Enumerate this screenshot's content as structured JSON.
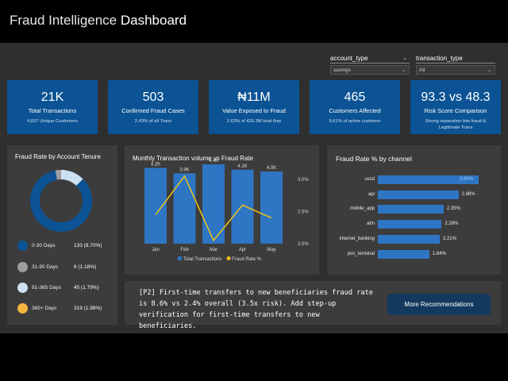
{
  "header": {
    "title_light": "Fraud Intelligence",
    "title_bold": "Dashboard"
  },
  "filters": [
    {
      "label": "account_type",
      "value": "savings"
    },
    {
      "label": "transaction_type",
      "value": "All"
    }
  ],
  "kpis": [
    {
      "value": "21K",
      "label": "Total Transactions",
      "sub": "4,837 Unique Customers"
    },
    {
      "value": "503",
      "label": "Confirmed Fraud Cases",
      "sub": "2.43% of all Trans"
    },
    {
      "value": "₦11M",
      "label": "Value Exposed to Fraud",
      "sub": "2.63% of 426.3M total flow"
    },
    {
      "value": "465",
      "label": "Customers Affected",
      "sub": "9.61% of active customer"
    },
    {
      "value": "93.3 vs 48.3",
      "label": "Risk Score Comparison",
      "sub": "Strong separation btw fraud & Legitimate Trans"
    }
  ],
  "tenure": {
    "title": "Fraud Rate by Account Tenure",
    "items": [
      {
        "label": "0-30 Days",
        "value": "133 (8.70%)",
        "color": "#0b5394"
      },
      {
        "label": "31-90 Days",
        "value": "6 (1.18%)",
        "color": "#9e9e9e"
      },
      {
        "label": "91-365 Days",
        "value": "45 (1.79%)",
        "color": "#cfe2f3"
      },
      {
        "label": "365+ Days",
        "value": "319 (1.98%)",
        "color": "#f6b73c"
      }
    ]
  },
  "chart_data": [
    {
      "type": "bar",
      "title": "Monthly Transaction volume vs Fraud Rate",
      "categories": [
        "Jan",
        "Feb",
        "Mar",
        "Apr",
        "May"
      ],
      "series": [
        {
          "name": "Total Transactions",
          "type": "bar",
          "color": "#2e75c4",
          "values": [
            4.2,
            3.9,
            4.4,
            4.1,
            4.0
          ],
          "labels": [
            "4.2K",
            "3.9K",
            "4.4K",
            "4.1K",
            "4.0K"
          ]
        },
        {
          "name": "Fraud Rate %",
          "type": "line",
          "color": "#f0c419",
          "values": [
            2.45,
            3.05,
            2.05,
            2.6,
            2.4
          ]
        }
      ],
      "y2_ticks": [
        "3.0%",
        "2.5%",
        "2.0%"
      ],
      "y2lim": [
        2.0,
        3.0
      ]
    },
    {
      "type": "bar",
      "orientation": "horizontal",
      "title": "Fraud Rate % by channel",
      "categories": [
        "ussd",
        "api",
        "mobile_app",
        "atm",
        "internet_banking",
        "pos_terminal"
      ],
      "values": [
        3.6,
        2.88,
        2.35,
        2.28,
        2.21,
        1.84
      ],
      "labels": [
        "3.60%",
        "2.88%",
        "2.35%",
        "2.28%",
        "2.21%",
        "1.84%"
      ]
    }
  ],
  "recommendation": {
    "text": "[P2] First-time transfers to new beneficiaries fraud rate is 8.6% vs 2.4% overall (3.5x risk). Add step-up verification for first-time transfers to new beneficiaries.",
    "button": "More Recommendations"
  }
}
